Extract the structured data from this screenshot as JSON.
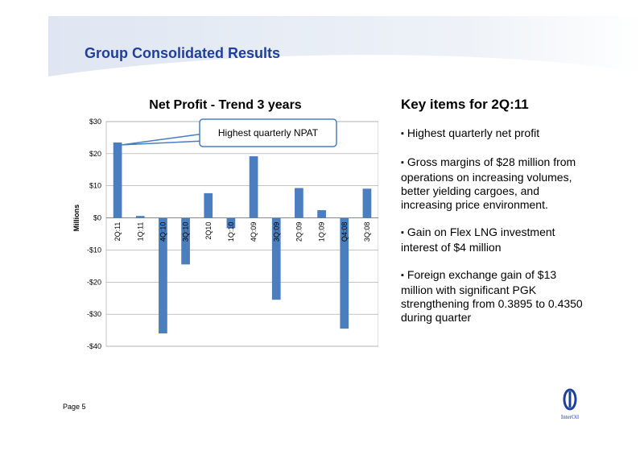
{
  "page": {
    "title": "Group Consolidated Results",
    "page_number": "Page 5",
    "logo_text": "InterOil"
  },
  "chart_data": {
    "type": "bar",
    "title": "Net Profit - Trend 3 years",
    "ylabel": "Millions",
    "xlabel": "",
    "categories": [
      "2Q:11",
      "1Q:11",
      "4Q:10",
      "3Q:10",
      "2Q10",
      "1Q:10",
      "4Q:09",
      "3Q:09",
      "2Q:09",
      "1Q:09",
      "Q4:08",
      "3Q:08"
    ],
    "values": [
      23.5,
      0.6,
      -36,
      -14.5,
      7.7,
      -3.2,
      19.2,
      -25.5,
      9.3,
      2.4,
      -34.5,
      9.1
    ],
    "ylim": [
      -40,
      30
    ],
    "yticks": [
      30,
      20,
      10,
      0,
      -10,
      -20,
      -30,
      -40
    ],
    "ytick_labels": [
      "$30",
      "$20",
      "$10",
      "$0",
      "-$10",
      "-$20",
      "-$30",
      "-$40"
    ],
    "grid": true,
    "bar_color": "#4a7ebf",
    "annotation": {
      "text": "Highest quarterly NPAT",
      "target_category": "2Q:11"
    }
  },
  "key_items": {
    "title": "Key items for 2Q:11",
    "items": [
      "Highest quarterly net profit",
      "Gross margins of $28 million from operations on increasing volumes, better yielding cargoes, and increasing price environment.",
      "Gain on Flex LNG investment interest of $4 million",
      "Foreign exchange gain of $13 million with significant PGK strengthening from 0.3895 to 0.4350 during quarter"
    ]
  }
}
